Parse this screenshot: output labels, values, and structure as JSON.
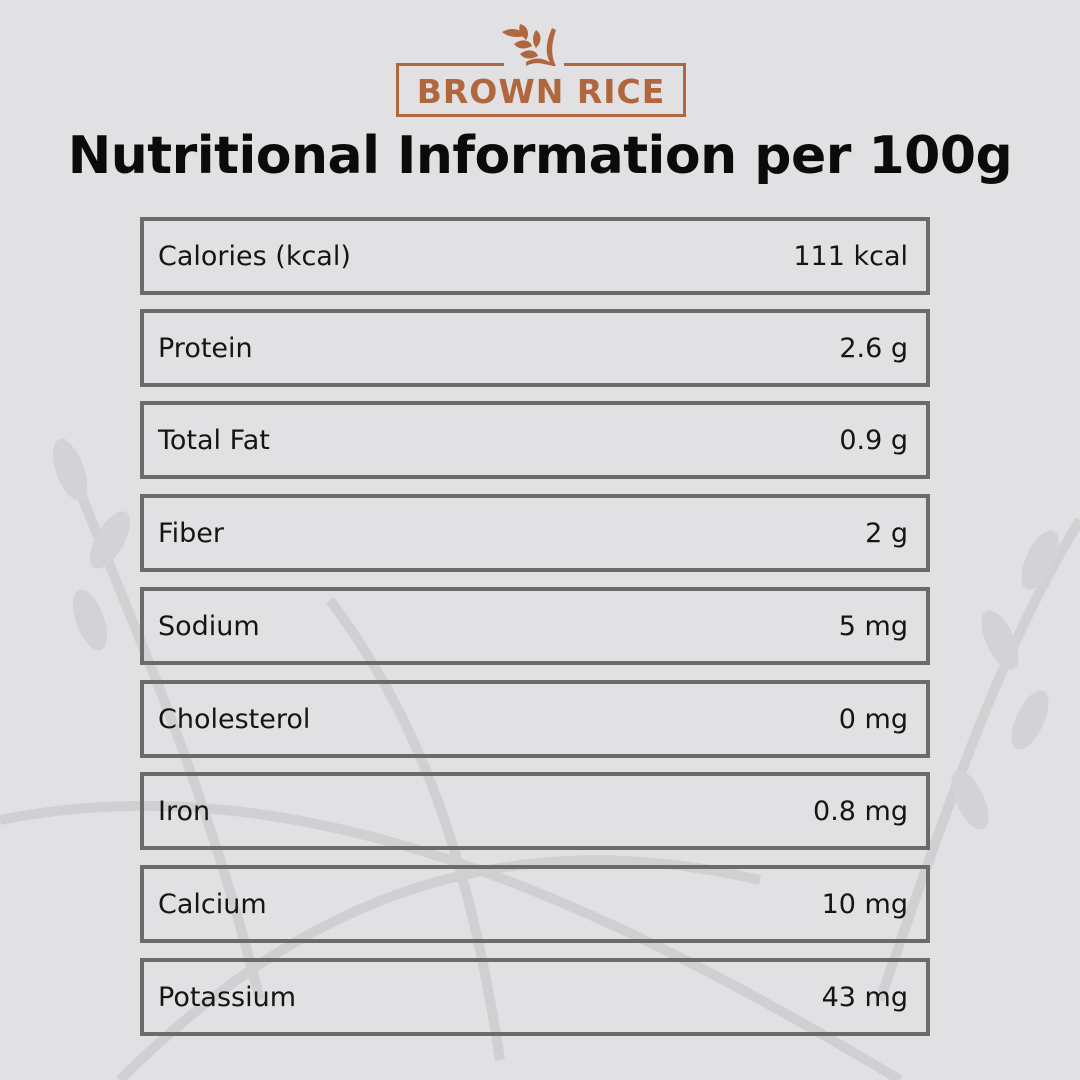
{
  "brand": {
    "logo_text": "BROWN RICE",
    "color": "#b0673d"
  },
  "title": "Nutritional Information per 100g",
  "rows": [
    {
      "label": "Calories (kcal)",
      "value": "111 kcal"
    },
    {
      "label": "Protein",
      "value": "2.6 g"
    },
    {
      "label": "Total Fat",
      "value": "0.9 g"
    },
    {
      "label": "Fiber",
      "value": "2 g"
    },
    {
      "label": "Sodium",
      "value": "5 mg"
    },
    {
      "label": "Cholesterol",
      "value": "0 mg"
    },
    {
      "label": "Iron",
      "value": "0.8 mg"
    },
    {
      "label": "Calcium",
      "value": "10 mg"
    },
    {
      "label": "Potassium",
      "value": "43 mg"
    }
  ]
}
